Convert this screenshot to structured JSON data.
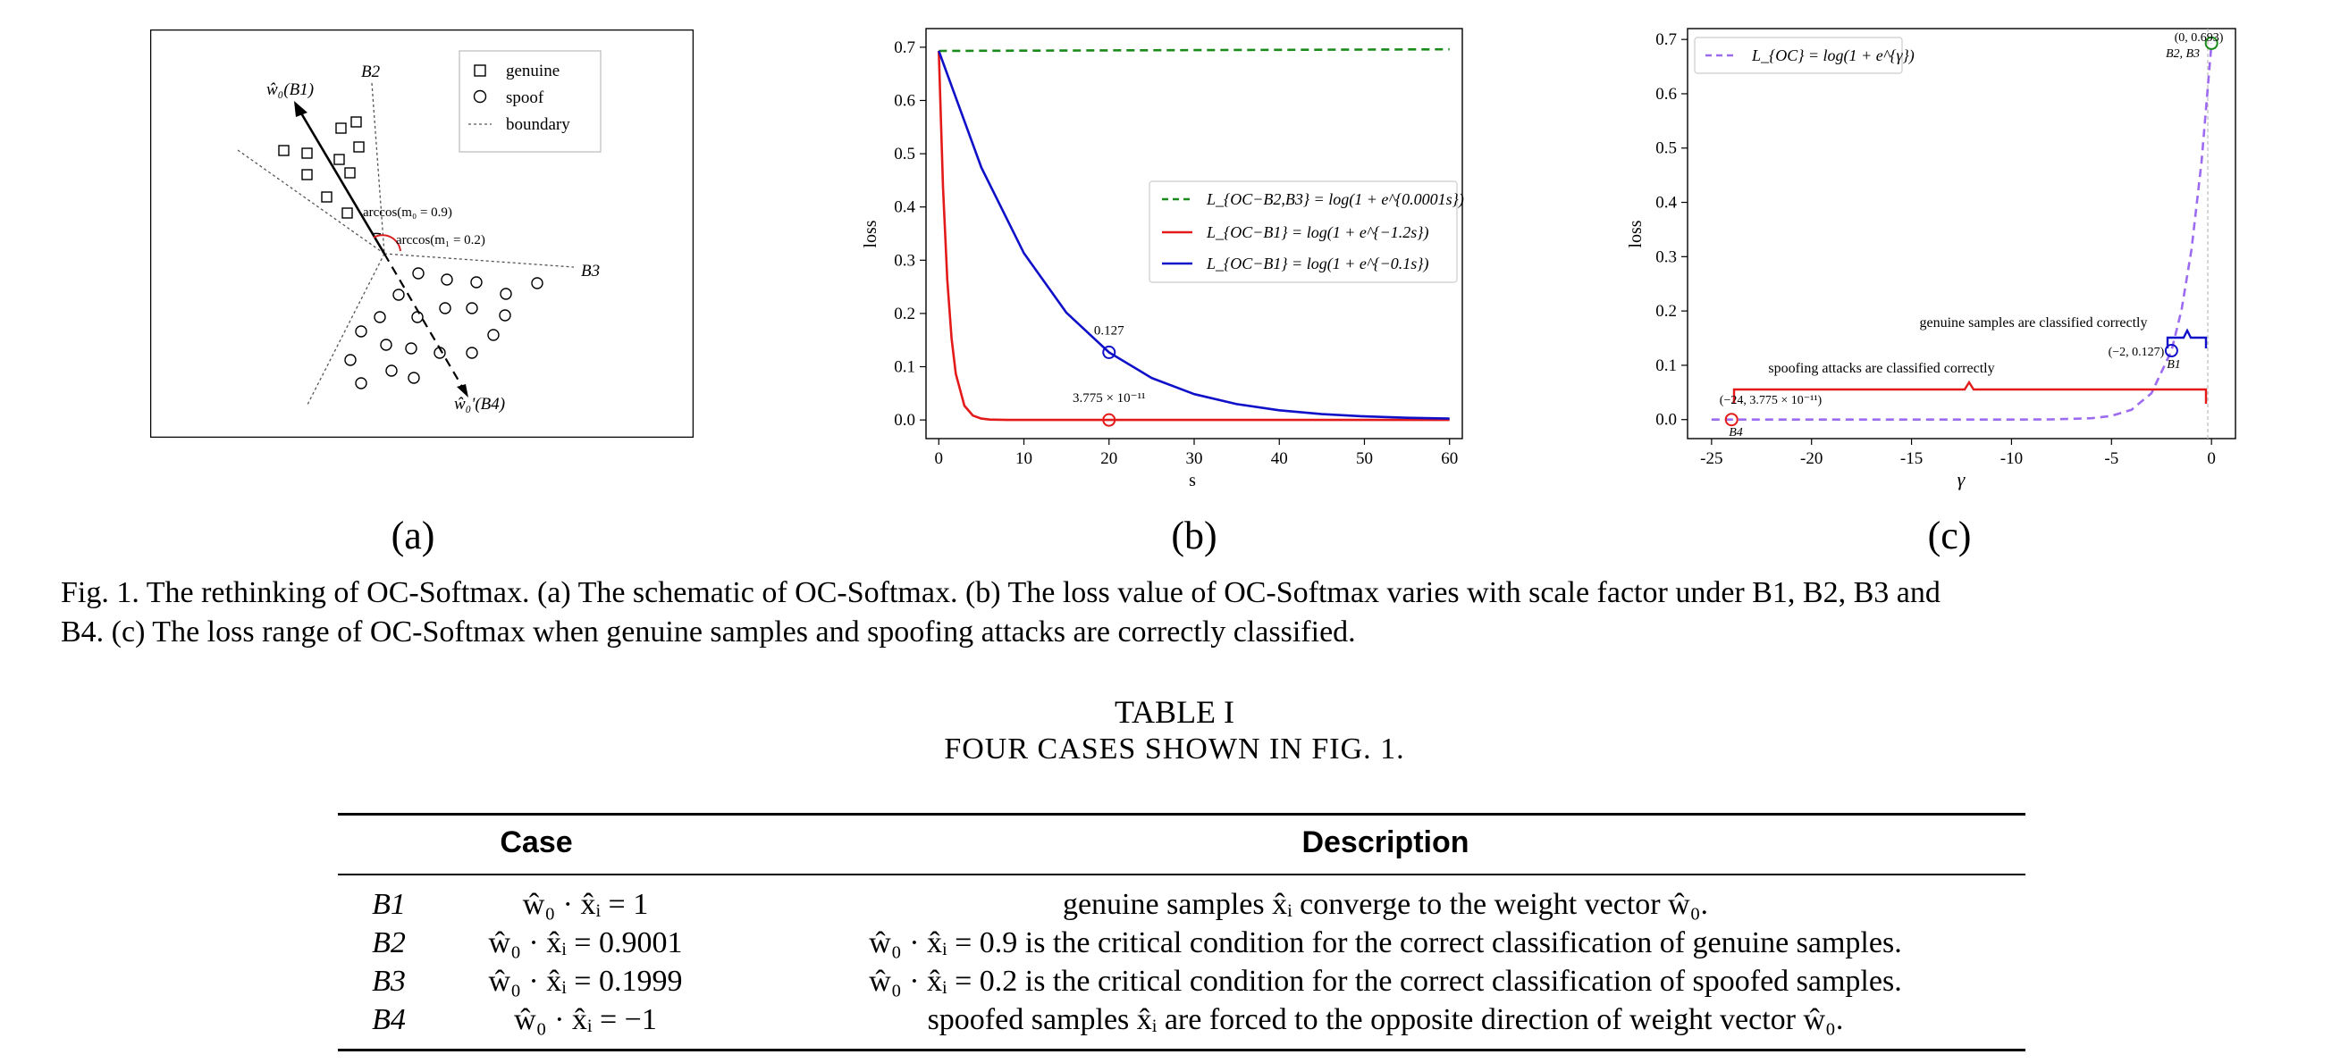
{
  "figure": {
    "panel_a": {
      "legend": [
        "genuine",
        "spoof",
        "boundary"
      ],
      "labels": {
        "w_b1": "ŵ₀(B1)",
        "w_b4": "ŵ₀'(B4)",
        "b2": "B2",
        "b3": "B3",
        "arc_m0": "arccos(m₀ = 0.9)",
        "arc_m1": "arccos(m₁ = 0.2)"
      }
    },
    "panel_b_legend": [
      "L_{OC−B2,B3} = log(1 + e^{0.0001s})",
      "L_{OC−B1} = log(1 + e^{−1.2s})",
      "L_{OC−B1} = log(1 + e^{−0.1s})"
    ],
    "panel_b_annotations": [
      "0.127",
      "3.775 × 10⁻¹¹"
    ],
    "panel_c_legend": [
      "L_{OC} = log(1 + e^{γ})"
    ],
    "panel_c_annotations": {
      "top_point": "(0, 0.693)",
      "top_label": "B2, B3",
      "mid_point": "(−2, 0.127)",
      "mid_label": "B1",
      "low_point": "(−24, 3.775 × 10⁻¹¹)",
      "low_label": "B4",
      "genuine_text": "genuine samples are classified correctly",
      "spoof_text": "spoofing attacks are classified correctly"
    },
    "sub_labels": [
      "(a)",
      "(b)",
      "(c)"
    ],
    "caption_line1": "Fig. 1.   The rethinking of OC-Softmax. (a) The schematic of OC-Softmax. (b) The loss value of OC-Softmax varies with scale factor under B1, B2, B3 and",
    "caption_line2": "B4. (c) The loss range of OC-Softmax when genuine samples and spoofing attacks are correctly classified."
  },
  "chart_data": [
    {
      "type": "line",
      "xlabel": "s",
      "ylabel": "loss",
      "xlim": [
        -1.5,
        61.5
      ],
      "ylim": [
        -0.035,
        0.735
      ],
      "xticks": [
        "0",
        "10",
        "20",
        "30",
        "40",
        "50",
        "60"
      ],
      "yticks": [
        "0.0",
        "0.1",
        "0.2",
        "0.3",
        "0.4",
        "0.5",
        "0.6",
        "0.7"
      ],
      "legend_position": "center-right",
      "series": [
        {
          "name": "L_{OC−B2,B3} = log(1 + e^{0.0001s})",
          "color": "#1a8a1a",
          "style": "dashed",
          "x": [
            0,
            10,
            20,
            30,
            40,
            50,
            60
          ],
          "y": [
            0.6931,
            0.6936,
            0.6941,
            0.6946,
            0.6951,
            0.6956,
            0.6961
          ]
        },
        {
          "name": "L_{OC−B1} = log(1 + e^{−1.2s})",
          "color": "#e41a1a",
          "style": "solid",
          "x": [
            0,
            0.5,
            1,
            1.5,
            2,
            3,
            4,
            5,
            6,
            8,
            10,
            20,
            40,
            60
          ],
          "y": [
            0.6931,
            0.4375,
            0.2633,
            0.153,
            0.0869,
            0.0269,
            0.0082,
            0.0025,
            0.0007,
            0.0001,
            0.0,
            0.0,
            0.0,
            0.0
          ]
        },
        {
          "name": "L_{OC−B1} = log(1 + e^{−0.1s})",
          "color": "#1010c8",
          "style": "solid",
          "x": [
            0,
            5,
            10,
            15,
            20,
            25,
            30,
            35,
            40,
            45,
            50,
            55,
            60
          ],
          "y": [
            0.6931,
            0.4741,
            0.3133,
            0.2014,
            0.1269,
            0.0789,
            0.0486,
            0.0298,
            0.0181,
            0.011,
            0.0067,
            0.0041,
            0.0025
          ]
        }
      ],
      "markers": [
        {
          "x": 20,
          "y": 0.127,
          "label": "0.127",
          "color": "#1010c8"
        },
        {
          "x": 20,
          "y": 0.0,
          "label": "3.775 × 10⁻¹¹",
          "color": "#e41a1a"
        }
      ]
    },
    {
      "type": "line",
      "xlabel": "γ",
      "ylabel": "loss",
      "xlim": [
        -26.2,
        1.2
      ],
      "ylim": [
        -0.035,
        0.72
      ],
      "xticks": [
        "-25",
        "-20",
        "-15",
        "-10",
        "-5",
        "0"
      ],
      "yticks": [
        "0.0",
        "0.1",
        "0.2",
        "0.3",
        "0.4",
        "0.5",
        "0.6",
        "0.7"
      ],
      "legend_position": "top-left",
      "series": [
        {
          "name": "L_{OC} = log(1 + e^{γ})",
          "color": "#9d6bf0",
          "style": "dashed",
          "x": [
            -25,
            -20,
            -15,
            -10,
            -8,
            -6,
            -5,
            -4,
            -3,
            -2,
            -1.5,
            -1,
            -0.5,
            0
          ],
          "y": [
            0.0,
            0.0,
            0.0,
            0.0,
            0.0003,
            0.0025,
            0.0067,
            0.0181,
            0.0486,
            0.1269,
            0.2014,
            0.3133,
            0.4741,
            0.6931
          ]
        }
      ],
      "markers": [
        {
          "x": 0,
          "y": 0.693,
          "label": "(0, 0.693)",
          "color": "#1a8a1a"
        },
        {
          "x": -2,
          "y": 0.127,
          "label": "(−2, 0.127)",
          "color": "#1010c8"
        },
        {
          "x": -24,
          "y": 0.0,
          "label": "(−24, 3.775 × 10⁻¹¹)",
          "color": "#e41a1a"
        }
      ]
    }
  ],
  "table": {
    "title": "TABLE I",
    "subtitle": "FOUR CASES SHOWN IN FIG. 1.",
    "headers": [
      "Case",
      "Description"
    ],
    "rows": [
      {
        "case": "B1",
        "cond": "ŵ₀ · x̂ᵢ = 1",
        "desc": "genuine samples x̂ᵢ converge to the weight vector ŵ₀."
      },
      {
        "case": "B2",
        "cond": "ŵ₀ · x̂ᵢ = 0.9001",
        "desc": "ŵ₀ · x̂ᵢ = 0.9 is the critical condition for the correct classification of genuine samples."
      },
      {
        "case": "B3",
        "cond": "ŵ₀ · x̂ᵢ = 0.1999",
        "desc": "ŵ₀ · x̂ᵢ = 0.2 is the critical condition for the correct classification of spoofed samples."
      },
      {
        "case": "B4",
        "cond": "ŵ₀ · x̂ᵢ = −1",
        "desc": "spoofed samples x̂ᵢ are forced to the opposite direction of weight vector ŵ₀."
      }
    ]
  }
}
